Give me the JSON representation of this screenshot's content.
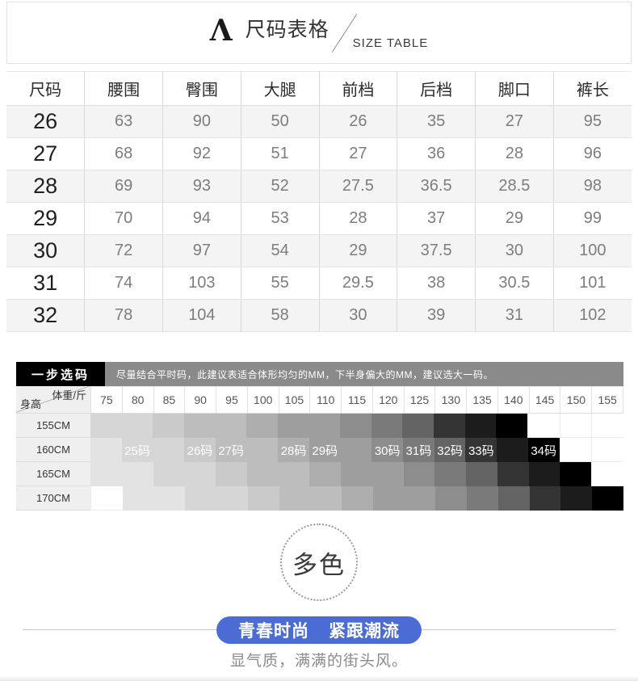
{
  "header": {
    "logo_glyph": "Λ",
    "title_cn": "尺码表格",
    "title_en": "SIZE TABLE"
  },
  "size_table": {
    "columns": [
      "尺码",
      "腰围",
      "臀围",
      "大腿",
      "前档",
      "后档",
      "脚口",
      "裤长"
    ],
    "rows": [
      [
        "26",
        "63",
        "90",
        "50",
        "26",
        "35",
        "27",
        "95"
      ],
      [
        "27",
        "68",
        "92",
        "51",
        "27",
        "36",
        "28",
        "96"
      ],
      [
        "28",
        "69",
        "93",
        "52",
        "27.5",
        "36.5",
        "28.5",
        "98"
      ],
      [
        "29",
        "70",
        "94",
        "53",
        "28",
        "37",
        "29",
        "99"
      ],
      [
        "30",
        "72",
        "97",
        "54",
        "29",
        "37.5",
        "30",
        "100"
      ],
      [
        "31",
        "74",
        "103",
        "55",
        "29.5",
        "38",
        "30.5",
        "101"
      ],
      [
        "32",
        "78",
        "104",
        "58",
        "30",
        "39",
        "31",
        "102"
      ]
    ]
  },
  "size_picker": {
    "title": "一步选码",
    "note": "尽量结合平时码，此建议表适合体形均匀的MM，下半身偏大的MM，建议选大一码。",
    "corner": {
      "top": "体重/斤",
      "bottom": "身高"
    },
    "weights": [
      "75",
      "80",
      "85",
      "90",
      "95",
      "100",
      "105",
      "110",
      "115",
      "120",
      "125",
      "130",
      "135",
      "140",
      "145",
      "150",
      "155"
    ],
    "heights": [
      "155CM",
      "160CM",
      "165CM",
      "170CM"
    ],
    "palette": [
      "#e3e3e3",
      "#d6d6d6",
      "#cacaca",
      "#bdbdbd",
      "#aeaeae",
      "#9e9e9e",
      "#8d8d8d",
      "#7a7a7a",
      "#646464",
      "#4c4c4c",
      "#343434",
      "#1c1c1c",
      "#000000"
    ],
    "cell_shades": [
      [
        1,
        1,
        2,
        3,
        3,
        4,
        5,
        5,
        6,
        7,
        8,
        10,
        11,
        12,
        -1,
        -1,
        -1
      ],
      [
        0,
        1,
        1,
        2,
        3,
        3,
        4,
        5,
        5,
        6,
        7,
        8,
        10,
        11,
        12,
        -1,
        -1
      ],
      [
        0,
        0,
        1,
        1,
        2,
        3,
        3,
        4,
        5,
        5,
        6,
        7,
        8,
        10,
        11,
        12,
        -1
      ],
      [
        -1,
        0,
        0,
        1,
        1,
        2,
        3,
        3,
        4,
        5,
        5,
        6,
        7,
        8,
        10,
        11,
        12
      ]
    ],
    "labels_row_index": 1,
    "labels": {
      "1": "25码",
      "3": "26码",
      "4": "27码",
      "6": "28码",
      "7": "29码",
      "9": "30码",
      "10": "31码",
      "11": "32码",
      "12": "33码",
      "14": "34码"
    }
  },
  "color_badge": {
    "text": "多色"
  },
  "banner": {
    "left": "青春时尚",
    "right": "紧跟潮流",
    "bg": "#4a6cd3"
  },
  "tagline": {
    "text": "显气质，满满的街头风。"
  }
}
